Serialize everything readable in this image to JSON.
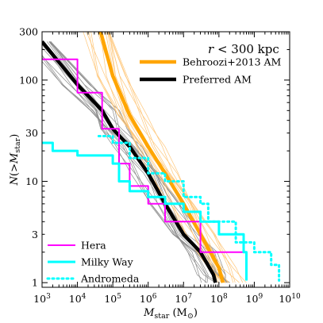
{
  "chart_data": {
    "type": "line",
    "x_scale": "log",
    "y_scale": "log",
    "xlim": [
      1000,
      10000000000
    ],
    "ylim": [
      0.9,
      300
    ],
    "xlabel": "M_star (M_⊙)",
    "ylabel": "N(>M_star)",
    "annotation": "r < 300 kpc",
    "grid": false,
    "legend_top": "top-right",
    "legend_bottom": "bottom-left",
    "x_ticks": [
      {
        "value": 1000,
        "label": "10^3"
      },
      {
        "value": 10000,
        "label": "10^4"
      },
      {
        "value": 100000,
        "label": "10^5"
      },
      {
        "value": 1000000,
        "label": "10^6"
      },
      {
        "value": 10000000,
        "label": "10^7"
      },
      {
        "value": 100000000,
        "label": "10^8"
      },
      {
        "value": 1000000000,
        "label": "10^9"
      },
      {
        "value": 10000000000,
        "label": "10^10"
      }
    ],
    "y_ticks": [
      {
        "value": 1,
        "label": "1"
      },
      {
        "value": 3,
        "label": "3"
      },
      {
        "value": 10,
        "label": "10"
      },
      {
        "value": 30,
        "label": "30"
      },
      {
        "value": 100,
        "label": "100"
      },
      {
        "value": 300,
        "label": "300"
      }
    ],
    "series": [
      {
        "name": "Behroozi+2013 AM",
        "color": "#FFA500",
        "width": 4.5,
        "dash": "",
        "points": [
          [
            45000,
            300
          ],
          [
            100000,
            110
          ],
          [
            300000,
            45
          ],
          [
            1000000,
            22
          ],
          [
            3000000,
            12
          ],
          [
            10000000,
            6
          ],
          [
            30000000,
            3
          ],
          [
            100000000,
            1.4
          ],
          [
            130000000,
            1.0
          ]
        ]
      },
      {
        "name": "Preferred AM",
        "color": "#000000",
        "width": 4.5,
        "dash": "",
        "points": [
          [
            1000,
            240
          ],
          [
            10000,
            90
          ],
          [
            50000,
            50
          ],
          [
            100000,
            33
          ],
          [
            300000,
            22
          ],
          [
            1000000,
            12
          ],
          [
            3000000,
            6
          ],
          [
            10000000,
            3
          ],
          [
            30000000,
            2
          ],
          [
            70000000,
            1.2
          ],
          [
            80000000,
            1.0
          ]
        ]
      },
      {
        "name": "Hera",
        "color": "#FF00FF",
        "width": 2,
        "dash": "",
        "points": [
          [
            1000,
            160
          ],
          [
            10000,
            75
          ],
          [
            50000,
            33
          ],
          [
            150000,
            15
          ],
          [
            300000,
            9
          ],
          [
            1000000,
            6
          ],
          [
            3000000,
            4
          ],
          [
            10000000,
            4
          ],
          [
            20000000,
            4
          ],
          [
            30000000,
            2
          ],
          [
            100000000,
            2
          ],
          [
            400000000,
            2
          ],
          [
            600000000,
            1.05
          ]
        ]
      },
      {
        "name": "Milky Way",
        "color": "#00FFFF",
        "width": 3,
        "dash": "",
        "points": [
          [
            1000,
            24
          ],
          [
            2000,
            20
          ],
          [
            10000,
            18
          ],
          [
            100000,
            15
          ],
          [
            150000,
            10
          ],
          [
            300000,
            8
          ],
          [
            1000000,
            7
          ],
          [
            3000000,
            6
          ],
          [
            10000000,
            5
          ],
          [
            30000000,
            4
          ],
          [
            100000000,
            3
          ],
          [
            500000000,
            2
          ],
          [
            600000000,
            1.05
          ]
        ]
      },
      {
        "name": "Andromeda",
        "color": "#00FFFF",
        "width": 3,
        "dash": "2 4",
        "points": [
          [
            40000,
            28
          ],
          [
            100000,
            24
          ],
          [
            300000,
            17
          ],
          [
            1000000,
            12
          ],
          [
            3000000,
            10
          ],
          [
            10000000,
            7
          ],
          [
            30000000,
            6
          ],
          [
            50000000,
            4
          ],
          [
            300000000,
            2.5
          ],
          [
            1000000000,
            2
          ],
          [
            3000000000,
            1.5
          ],
          [
            5000000000,
            1.05
          ]
        ]
      }
    ],
    "thin_realizations": {
      "orange": {
        "color": "#FFC77A",
        "count": 14,
        "anchors": [
          [
            45000,
            300
          ],
          [
            100000,
            110
          ],
          [
            300000,
            45
          ],
          [
            1000000,
            22
          ],
          [
            3000000,
            12
          ],
          [
            10000000,
            6
          ],
          [
            30000000,
            3
          ],
          [
            100000000,
            1.4
          ],
          [
            200000000,
            1.0
          ]
        ]
      },
      "gray": {
        "color": "#8C8C8C",
        "count": 16,
        "anchors": [
          [
            1000,
            240
          ],
          [
            10000,
            90
          ],
          [
            50000,
            50
          ],
          [
            100000,
            33
          ],
          [
            300000,
            22
          ],
          [
            1000000,
            12
          ],
          [
            3000000,
            6
          ],
          [
            10000000,
            3
          ],
          [
            30000000,
            2
          ],
          [
            70000000,
            1.2
          ],
          [
            100000000,
            1.0
          ]
        ]
      }
    }
  }
}
